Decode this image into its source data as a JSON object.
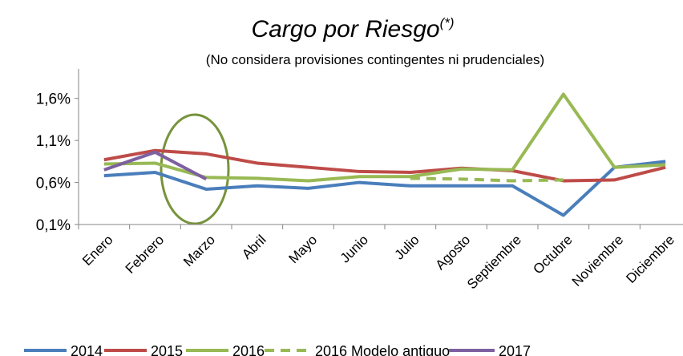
{
  "chart_data": {
    "type": "line",
    "title": "Cargo por Riesgo",
    "title_superscript": "(*)",
    "subtitle": "(No considera provisiones contingentes ni prudenciales)",
    "categories": [
      "Enero",
      "Febrero",
      "Marzo",
      "Abril",
      "Mayo",
      "Junio",
      "Julio",
      "Agosto",
      "Septiembre",
      "Octubre",
      "Noviembre",
      "Diciembre"
    ],
    "series": [
      {
        "name": "2014",
        "color": "#4a7ebb",
        "values": [
          0.68,
          0.72,
          0.52,
          0.56,
          0.53,
          0.6,
          0.56,
          0.56,
          0.56,
          0.21,
          0.78,
          0.85
        ]
      },
      {
        "name": "2015",
        "color": "#be4b48",
        "values": [
          0.87,
          0.98,
          0.94,
          0.83,
          0.78,
          0.73,
          0.72,
          0.77,
          0.74,
          0.62,
          0.63,
          0.78
        ]
      },
      {
        "name": "2016",
        "color": "#98b954",
        "values": [
          0.82,
          0.83,
          0.66,
          0.65,
          0.62,
          0.67,
          0.67,
          0.76,
          0.75,
          1.65,
          0.78,
          0.81
        ]
      },
      {
        "name": "2016 Modelo antiguo",
        "color": "#98b954",
        "dashed": true,
        "values": [
          null,
          null,
          null,
          null,
          null,
          null,
          0.65,
          0.64,
          0.62,
          0.63,
          null,
          null
        ]
      },
      {
        "name": "2017",
        "color": "#7d60a0",
        "values": [
          0.75,
          0.96,
          0.64,
          null,
          null,
          null,
          null,
          null,
          null,
          null,
          null,
          null
        ]
      }
    ],
    "ylim": [
      0.1,
      1.95
    ],
    "yticks": [
      {
        "value": 0.1,
        "label": "0,1%"
      },
      {
        "value": 0.6,
        "label": "0,6%"
      },
      {
        "value": 1.1,
        "label": "1,1%"
      },
      {
        "value": 1.6,
        "label": "1,6%"
      }
    ],
    "grid": false
  }
}
